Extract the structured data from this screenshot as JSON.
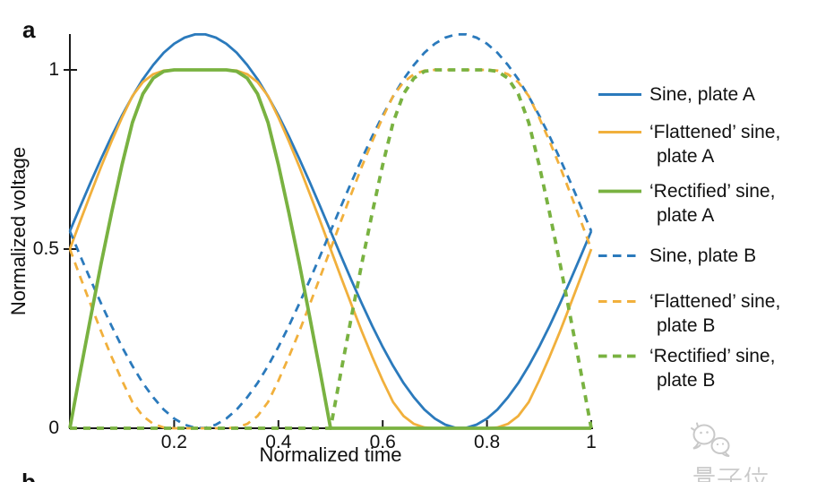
{
  "panel": {
    "label_a": "a",
    "label_b": "b"
  },
  "axis_color": "#1a1a1a",
  "chart_data": {
    "type": "line",
    "title": "",
    "xlabel": "Normalized time",
    "ylabel": "Normalized voltage",
    "xlim": [
      0,
      1
    ],
    "ylim": [
      0,
      1.1
    ],
    "grid": false,
    "legend_position": "right-outside",
    "x_ticks": {
      "values": [
        0.2,
        0.4,
        0.6,
        0.8,
        1
      ],
      "labels": [
        "0.2",
        "0.4",
        "0.6",
        "0.8",
        "1"
      ]
    },
    "y_ticks": {
      "values": [
        0,
        0.5,
        1
      ],
      "labels": [
        "0",
        "0.5",
        "1"
      ]
    },
    "x": [
      0,
      0.02,
      0.04,
      0.06,
      0.08,
      0.1,
      0.12,
      0.14,
      0.16,
      0.18,
      0.2,
      0.22,
      0.24,
      0.26,
      0.28,
      0.3,
      0.32,
      0.34,
      0.36,
      0.38,
      0.4,
      0.42,
      0.44,
      0.46,
      0.48,
      0.5,
      0.52,
      0.54,
      0.56,
      0.58,
      0.6,
      0.62,
      0.64,
      0.66,
      0.68,
      0.7,
      0.72,
      0.74,
      0.76,
      0.78,
      0.8,
      0.82,
      0.84,
      0.86,
      0.88,
      0.9,
      0.92,
      0.94,
      0.96,
      0.98,
      1
    ],
    "series": [
      {
        "name": "Sine, plate A",
        "color": "#2b7abc",
        "style": "solid",
        "values": [
          0.55,
          0.619,
          0.687,
          0.752,
          0.815,
          0.873,
          0.926,
          0.974,
          1.014,
          1.048,
          1.073,
          1.09,
          1.099,
          1.099,
          1.09,
          1.073,
          1.048,
          1.014,
          0.974,
          0.926,
          0.873,
          0.815,
          0.752,
          0.687,
          0.619,
          0.55,
          0.481,
          0.413,
          0.348,
          0.285,
          0.227,
          0.174,
          0.126,
          0.086,
          0.052,
          0.027,
          0.01,
          0.001,
          0.001,
          0.01,
          0.027,
          0.052,
          0.086,
          0.126,
          0.174,
          0.227,
          0.285,
          0.348,
          0.413,
          0.481,
          0.55
        ]
      },
      {
        "name": "‘Flattened’ sine, plate A",
        "color": "#f1b03c",
        "style": "solid",
        "values": [
          0.5,
          0.578,
          0.655,
          0.73,
          0.801,
          0.867,
          0.927,
          0.966,
          0.988,
          0.998,
          1.0,
          1.0,
          1.0,
          1.0,
          1.0,
          1.0,
          0.998,
          0.988,
          0.966,
          0.927,
          0.867,
          0.801,
          0.73,
          0.655,
          0.578,
          0.5,
          0.422,
          0.345,
          0.27,
          0.199,
          0.133,
          0.073,
          0.034,
          0.012,
          0.002,
          0.0,
          0.0,
          0.0,
          0.0,
          0.0,
          0.0,
          0.002,
          0.012,
          0.034,
          0.073,
          0.133,
          0.199,
          0.27,
          0.345,
          0.422,
          0.5
        ]
      },
      {
        "name": "‘Rectified’ sine, plate A",
        "color": "#79b241",
        "style": "solid",
        "values": [
          0.0,
          0.157,
          0.311,
          0.46,
          0.602,
          0.735,
          0.853,
          0.933,
          0.977,
          0.996,
          1.0,
          1.0,
          1.0,
          1.0,
          1.0,
          1.0,
          0.996,
          0.977,
          0.933,
          0.853,
          0.735,
          0.602,
          0.46,
          0.311,
          0.157,
          0.0,
          0.0,
          0.0,
          0.0,
          0.0,
          0.0,
          0.0,
          0.0,
          0.0,
          0.0,
          0.0,
          0.0,
          0.0,
          0.0,
          0.0,
          0.0,
          0.0,
          0.0,
          0.0,
          0.0,
          0.0,
          0.0,
          0.0,
          0.0,
          0.0,
          0.0
        ]
      },
      {
        "name": "Sine, plate B",
        "color": "#2b7abc",
        "style": "dashed",
        "values": [
          0.55,
          0.481,
          0.413,
          0.348,
          0.285,
          0.227,
          0.174,
          0.126,
          0.086,
          0.052,
          0.027,
          0.01,
          0.001,
          0.001,
          0.01,
          0.027,
          0.052,
          0.086,
          0.126,
          0.174,
          0.227,
          0.285,
          0.348,
          0.413,
          0.481,
          0.55,
          0.619,
          0.687,
          0.752,
          0.815,
          0.873,
          0.926,
          0.974,
          1.014,
          1.048,
          1.073,
          1.09,
          1.099,
          1.099,
          1.09,
          1.073,
          1.048,
          1.014,
          0.974,
          0.926,
          0.873,
          0.815,
          0.752,
          0.687,
          0.619,
          0.55
        ]
      },
      {
        "name": "‘Flattened’ sine, plate B",
        "color": "#f1b03c",
        "style": "dashed",
        "values": [
          0.5,
          0.422,
          0.345,
          0.27,
          0.199,
          0.133,
          0.073,
          0.034,
          0.012,
          0.002,
          0.0,
          0.0,
          0.0,
          0.0,
          0.0,
          0.0,
          0.002,
          0.012,
          0.034,
          0.073,
          0.133,
          0.199,
          0.27,
          0.345,
          0.422,
          0.5,
          0.578,
          0.655,
          0.73,
          0.801,
          0.867,
          0.927,
          0.966,
          0.988,
          0.998,
          1.0,
          1.0,
          1.0,
          1.0,
          1.0,
          1.0,
          0.998,
          0.988,
          0.966,
          0.927,
          0.867,
          0.801,
          0.73,
          0.655,
          0.578,
          0.5
        ]
      },
      {
        "name": "‘Rectified’ sine, plate B",
        "color": "#79b241",
        "style": "dashed",
        "values": [
          0.0,
          0.0,
          0.0,
          0.0,
          0.0,
          0.0,
          0.0,
          0.0,
          0.0,
          0.0,
          0.0,
          0.0,
          0.0,
          0.0,
          0.0,
          0.0,
          0.0,
          0.0,
          0.0,
          0.0,
          0.0,
          0.0,
          0.0,
          0.0,
          0.0,
          0.0,
          0.157,
          0.311,
          0.46,
          0.602,
          0.735,
          0.853,
          0.933,
          0.977,
          0.996,
          1.0,
          1.0,
          1.0,
          1.0,
          1.0,
          1.0,
          0.996,
          0.977,
          0.933,
          0.853,
          0.735,
          0.602,
          0.46,
          0.311,
          0.157,
          0.0
        ]
      }
    ]
  },
  "legend": {
    "items": [
      {
        "line1": "Sine, plate A",
        "line2": ""
      },
      {
        "line1": "‘Flattened’ sine,",
        "line2": "plate A"
      },
      {
        "line1": "‘Rectified’ sine,",
        "line2": "plate A"
      },
      {
        "line1": "Sine, plate B",
        "line2": ""
      },
      {
        "line1": "‘Flattened’ sine,",
        "line2": "plate B"
      },
      {
        "line1": "‘Rectified’ sine,",
        "line2": "plate B"
      }
    ]
  },
  "watermark": {
    "text": "量子位",
    "color": "#c9c9c9",
    "icon": "chat-bubbles-logo"
  }
}
